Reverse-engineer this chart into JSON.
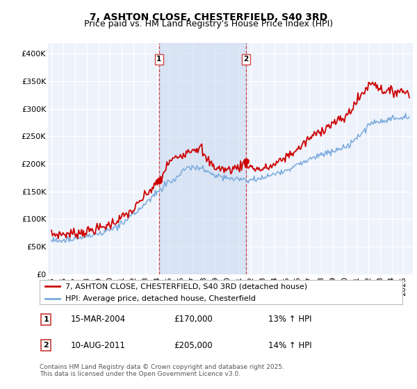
{
  "title": "7, ASHTON CLOSE, CHESTERFIELD, S40 3RD",
  "subtitle": "Price paid vs. HM Land Registry's House Price Index (HPI)",
  "ylim": [
    0,
    420000
  ],
  "yticks": [
    0,
    50000,
    100000,
    150000,
    200000,
    250000,
    300000,
    350000,
    400000
  ],
  "ytick_labels": [
    "£0",
    "£50K",
    "£100K",
    "£150K",
    "£200K",
    "£250K",
    "£300K",
    "£350K",
    "£400K"
  ],
  "background_color": "#ffffff",
  "plot_bg_color": "#edf2fb",
  "grid_color": "#ffffff",
  "sale1_date": "15-MAR-2004",
  "sale1_price": 170000,
  "sale1_hpi_pct": "13%",
  "sale2_date": "10-AUG-2011",
  "sale2_price": 205000,
  "sale2_hpi_pct": "14%",
  "legend_label_red": "7, ASHTON CLOSE, CHESTERFIELD, S40 3RD (detached house)",
  "legend_label_blue": "HPI: Average price, detached house, Chesterfield",
  "footer": "Contains HM Land Registry data © Crown copyright and database right 2025.\nThis data is licensed under the Open Government Licence v3.0.",
  "red_color": "#cc0000",
  "blue_color": "#7aaadd",
  "vline_color": "#cc4444",
  "shade_color": "#c8d8f0",
  "title_fontsize": 10,
  "subtitle_fontsize": 9,
  "tick_fontsize": 8,
  "legend_fontsize": 8,
  "sale_fontsize": 8.5,
  "footer_fontsize": 6.5
}
